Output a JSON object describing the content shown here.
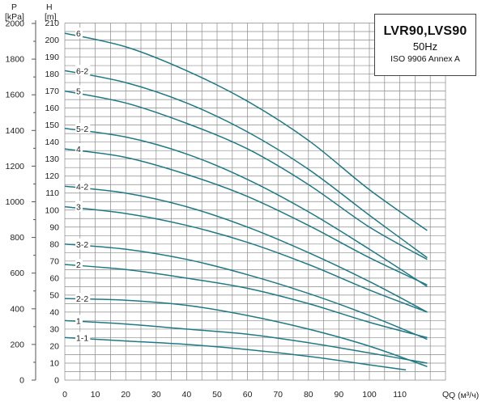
{
  "chart_data": {
    "type": "line",
    "title": "LVR90,LVS90",
    "subtitle": "50Hz",
    "standard": "ISO 9906 Annex A",
    "ylabel_left_name": "P",
    "ylabel_left_unit": "[kPa]",
    "ylabel_right_name": "H",
    "ylabel_right_unit": "[m]",
    "xlabel_axis": "Q",
    "xlabel_unit": "(м³/ч)",
    "xlabel_end_tick": "Q",
    "xlim": [
      0,
      125
    ],
    "ylim_head": [
      0,
      210
    ],
    "ylim_pressure": [
      0,
      2000
    ],
    "x_ticks": [
      0,
      10,
      20,
      30,
      40,
      50,
      60,
      70,
      80,
      90,
      100,
      110
    ],
    "head_ticks": [
      0,
      10,
      20,
      30,
      40,
      50,
      60,
      70,
      80,
      90,
      100,
      110,
      120,
      130,
      140,
      150,
      160,
      170,
      180,
      190,
      200,
      210
    ],
    "pressure_ticks": [
      0,
      200,
      400,
      600,
      800,
      1000,
      1200,
      1400,
      1600,
      1800,
      2000
    ],
    "grid": true,
    "line_color": "#1f7a85",
    "series": [
      {
        "name": "6",
        "points": [
          [
            0,
            204
          ],
          [
            20,
            196
          ],
          [
            40,
            182
          ],
          [
            60,
            164
          ],
          [
            80,
            141
          ],
          [
            100,
            112
          ],
          [
            119,
            88
          ]
        ]
      },
      {
        "name": "6-2",
        "points": [
          [
            0,
            182
          ],
          [
            20,
            175
          ],
          [
            40,
            163
          ],
          [
            60,
            146
          ],
          [
            80,
            124
          ],
          [
            100,
            97
          ],
          [
            119,
            72
          ]
        ]
      },
      {
        "name": "5",
        "points": [
          [
            0,
            170
          ],
          [
            20,
            163
          ],
          [
            40,
            151
          ],
          [
            60,
            136
          ],
          [
            80,
            115
          ],
          [
            100,
            90
          ],
          [
            119,
            71
          ]
        ]
      },
      {
        "name": "5-2",
        "points": [
          [
            0,
            148
          ],
          [
            20,
            143
          ],
          [
            40,
            133
          ],
          [
            60,
            118
          ],
          [
            80,
            99
          ],
          [
            100,
            77
          ],
          [
            119,
            55
          ]
        ]
      },
      {
        "name": "4",
        "points": [
          [
            0,
            136
          ],
          [
            20,
            131
          ],
          [
            40,
            121
          ],
          [
            60,
            108
          ],
          [
            80,
            91
          ],
          [
            100,
            72
          ],
          [
            119,
            56
          ]
        ]
      },
      {
        "name": "4-2",
        "points": [
          [
            0,
            114
          ],
          [
            20,
            110
          ],
          [
            40,
            102
          ],
          [
            60,
            90
          ],
          [
            80,
            75
          ],
          [
            100,
            58
          ],
          [
            119,
            40
          ]
        ]
      },
      {
        "name": "3",
        "points": [
          [
            0,
            102
          ],
          [
            20,
            98
          ],
          [
            40,
            91
          ],
          [
            60,
            81
          ],
          [
            80,
            68
          ],
          [
            100,
            53
          ],
          [
            119,
            40
          ]
        ]
      },
      {
        "name": "3-2",
        "points": [
          [
            0,
            80
          ],
          [
            20,
            77
          ],
          [
            40,
            71
          ],
          [
            60,
            62
          ],
          [
            80,
            51
          ],
          [
            100,
            38
          ],
          [
            119,
            24
          ]
        ]
      },
      {
        "name": "2",
        "points": [
          [
            0,
            68
          ],
          [
            20,
            65
          ],
          [
            40,
            60
          ],
          [
            60,
            54
          ],
          [
            80,
            45
          ],
          [
            100,
            34
          ],
          [
            119,
            25
          ]
        ]
      },
      {
        "name": "2-2",
        "points": [
          [
            0,
            48
          ],
          [
            20,
            47
          ],
          [
            40,
            44
          ],
          [
            60,
            38
          ],
          [
            80,
            30
          ],
          [
            100,
            20
          ],
          [
            119,
            8
          ]
        ]
      },
      {
        "name": "1",
        "points": [
          [
            0,
            35
          ],
          [
            20,
            33
          ],
          [
            40,
            30
          ],
          [
            60,
            27
          ],
          [
            80,
            22
          ],
          [
            100,
            16
          ],
          [
            119,
            10
          ]
        ]
      },
      {
        "name": "1-1",
        "points": [
          [
            0,
            25
          ],
          [
            20,
            23
          ],
          [
            40,
            21
          ],
          [
            60,
            18
          ],
          [
            80,
            14
          ],
          [
            100,
            9
          ],
          [
            112,
            6
          ]
        ]
      }
    ]
  }
}
